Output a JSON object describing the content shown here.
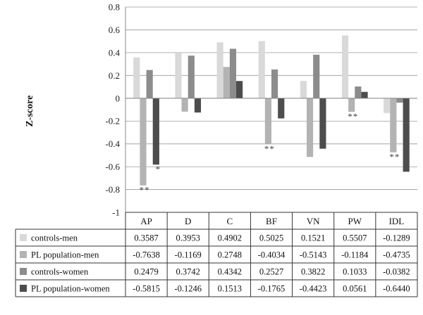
{
  "chart_data": {
    "type": "bar",
    "ylabel": "Z-score",
    "ylim": [
      -1,
      0.8
    ],
    "yticks": [
      0.8,
      0.6,
      0.4,
      0.2,
      0,
      -0.2,
      -0.4,
      -0.6,
      -0.8,
      -1
    ],
    "grid": true,
    "legend": "data table below chart",
    "categories": [
      "AP",
      "D",
      "C",
      "BF",
      "VN",
      "PW",
      "IDL"
    ],
    "series": [
      {
        "name": "controls-men",
        "color": "#d9d9d9",
        "values": [
          0.3587,
          0.3953,
          0.4902,
          0.5025,
          0.1521,
          0.5507,
          -0.1289
        ],
        "labels": [
          "0.3587",
          "0.3953",
          "0.4902",
          "0.5025",
          "0.1521",
          "0.5507",
          "-0.1289"
        ]
      },
      {
        "name": "PL population-men",
        "color": "#b3b3b3",
        "values": [
          -0.7638,
          -0.1169,
          0.2748,
          -0.4034,
          -0.5143,
          -0.1184,
          -0.4735
        ],
        "labels": [
          "-0.7638",
          "-0.1169",
          "0.2748",
          "-0.4034",
          "-0.5143",
          "-0.1184",
          "-0.4735"
        ]
      },
      {
        "name": "controls-women",
        "color": "#8c8c8c",
        "values": [
          0.2479,
          0.3742,
          0.4342,
          0.2527,
          0.3822,
          0.1033,
          -0.0382
        ],
        "labels": [
          "0.2479",
          "0.3742",
          "0.4342",
          "0.2527",
          "0.3822",
          "0.1033",
          "-0.0382"
        ]
      },
      {
        "name": "PL population-women",
        "color": "#4d4d4d",
        "values": [
          -0.5815,
          -0.1246,
          0.1513,
          -0.1765,
          -0.4423,
          0.0561,
          -0.644
        ],
        "labels": [
          "-0.5815",
          "-0.1246",
          "0.1513",
          "-0.1765",
          "-0.4423",
          "0.0561",
          "-0.6440"
        ]
      }
    ],
    "annotations": [
      {
        "text": "**",
        "category": "AP",
        "series": 1
      },
      {
        "text": "*",
        "category": "AP",
        "series": 3
      },
      {
        "text": "**",
        "category": "BF",
        "series": 1
      },
      {
        "text": "**",
        "category": "PW",
        "series": 1
      },
      {
        "text": "**",
        "category": "IDL",
        "series": 1
      }
    ]
  }
}
